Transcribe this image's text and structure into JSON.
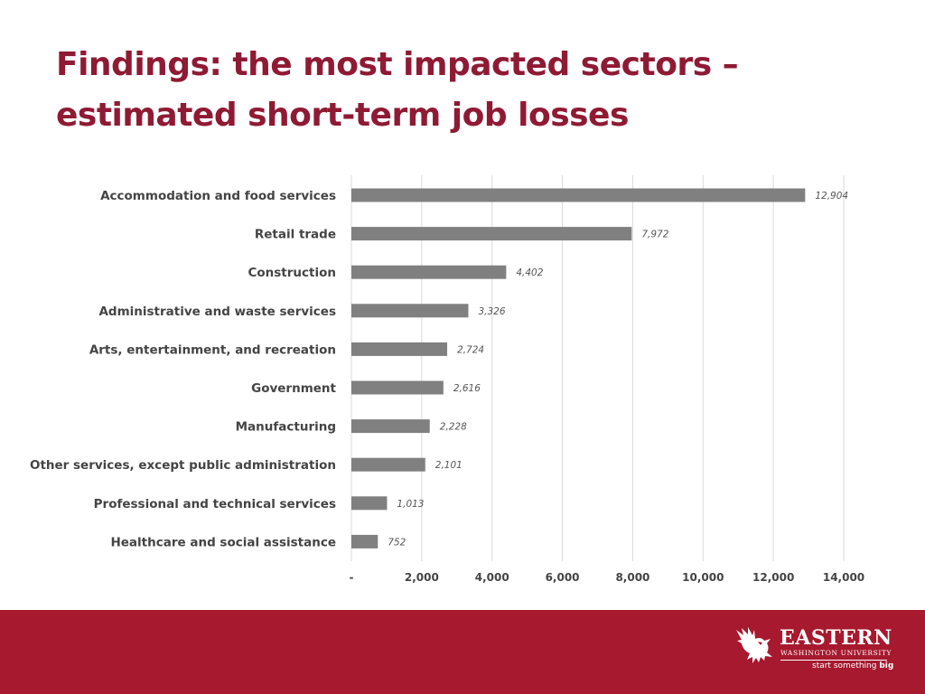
{
  "title": {
    "line1": "Findings: the most impacted sectors –",
    "line2": "estimated short-term job losses"
  },
  "colors": {
    "title": "#8f1a33",
    "bar": "#808080",
    "footer": "#a6192e",
    "grid": "#d9d9d9"
  },
  "chart_data": {
    "type": "bar",
    "orientation": "horizontal",
    "title": "",
    "xlabel": "",
    "ylabel": "",
    "categories": [
      "Accommodation and food services",
      "Retail trade",
      "Construction",
      "Administrative and waste services",
      "Arts, entertainment, and recreation",
      "Government",
      "Manufacturing",
      "Other services, except public administration",
      "Professional and technical services",
      "Healthcare and social assistance"
    ],
    "values": [
      12904,
      7972,
      4402,
      3326,
      2724,
      2616,
      2228,
      2101,
      1013,
      752
    ],
    "value_labels": [
      "12,904",
      "7,972",
      "4,402",
      "3,326",
      "2,724",
      "2,616",
      "2,228",
      "2,101",
      "1,013",
      "752"
    ],
    "xlim": [
      0,
      14000
    ],
    "xticks": [
      0,
      2000,
      4000,
      6000,
      8000,
      10000,
      12000,
      14000
    ],
    "xtick_labels": [
      "-",
      "2,000",
      "4,000",
      "6,000",
      "8,000",
      "10,000",
      "12,000",
      "14,000"
    ],
    "grid": "vertical",
    "legend": "none"
  },
  "footer": {
    "logo_name": "EASTERN",
    "logo_sub": "WASHINGTON UNIVERSITY",
    "tagline_prefix": "start something",
    "tagline_bold": "big",
    "logo_icon": "eagle-icon"
  }
}
